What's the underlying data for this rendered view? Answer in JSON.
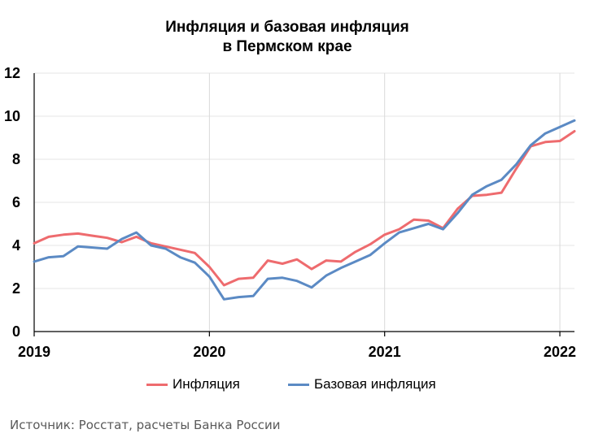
{
  "chart_data": {
    "type": "line",
    "title": [
      "Инфляция и базовая инфляция",
      "в  Пермском крае"
    ],
    "xlabel": "",
    "ylabel": "",
    "ylim": [
      0,
      12
    ],
    "yticks": [
      "0",
      "2",
      "4",
      "6",
      "8",
      "10",
      "12"
    ],
    "xlim": [
      "2019-01",
      "2022-02"
    ],
    "xticks": [
      {
        "label": "2019",
        "date": "2019-01"
      },
      {
        "label": "2020",
        "date": "2020-01"
      },
      {
        "label": "2021",
        "date": "2021-01"
      },
      {
        "label": "2022",
        "date": "2022-01"
      }
    ],
    "grid": {
      "vertical_at_years": true,
      "horizontal": true
    },
    "legend": "bottom",
    "x": [
      "2019-01",
      "2019-02",
      "2019-03",
      "2019-04",
      "2019-05",
      "2019-06",
      "2019-07",
      "2019-08",
      "2019-09",
      "2019-10",
      "2019-11",
      "2019-12",
      "2020-01",
      "2020-02",
      "2020-03",
      "2020-04",
      "2020-05",
      "2020-06",
      "2020-07",
      "2020-08",
      "2020-09",
      "2020-10",
      "2020-11",
      "2020-12",
      "2021-01",
      "2021-02",
      "2021-03",
      "2021-04",
      "2021-05",
      "2021-06",
      "2021-07",
      "2021-08",
      "2021-09",
      "2021-10",
      "2021-11",
      "2021-12",
      "2022-01",
      "2022-02"
    ],
    "series": [
      {
        "name": "Инфляция",
        "color": "#ee6b6e",
        "values": [
          4.1,
          4.4,
          4.5,
          4.55,
          4.45,
          4.35,
          4.15,
          4.4,
          4.1,
          3.95,
          3.8,
          3.65,
          3.0,
          2.15,
          2.45,
          2.5,
          3.3,
          3.15,
          3.35,
          2.9,
          3.3,
          3.25,
          3.7,
          4.05,
          4.5,
          4.75,
          5.2,
          5.15,
          4.8,
          5.7,
          6.3,
          6.35,
          6.45,
          7.55,
          8.6,
          8.8,
          8.85,
          9.3
        ]
      },
      {
        "name": "Базовая инфляция",
        "color": "#5b8ac4",
        "values": [
          3.25,
          3.45,
          3.5,
          3.95,
          3.9,
          3.85,
          4.3,
          4.6,
          4.0,
          3.85,
          3.45,
          3.2,
          2.55,
          1.5,
          1.6,
          1.65,
          2.45,
          2.5,
          2.35,
          2.05,
          2.6,
          2.95,
          3.25,
          3.55,
          4.1,
          4.6,
          4.8,
          5.0,
          4.75,
          5.5,
          6.35,
          6.75,
          7.05,
          7.75,
          8.65,
          9.2,
          9.5,
          9.8
        ]
      }
    ]
  },
  "source": "Источник: Росстат, расчеты Банка России"
}
